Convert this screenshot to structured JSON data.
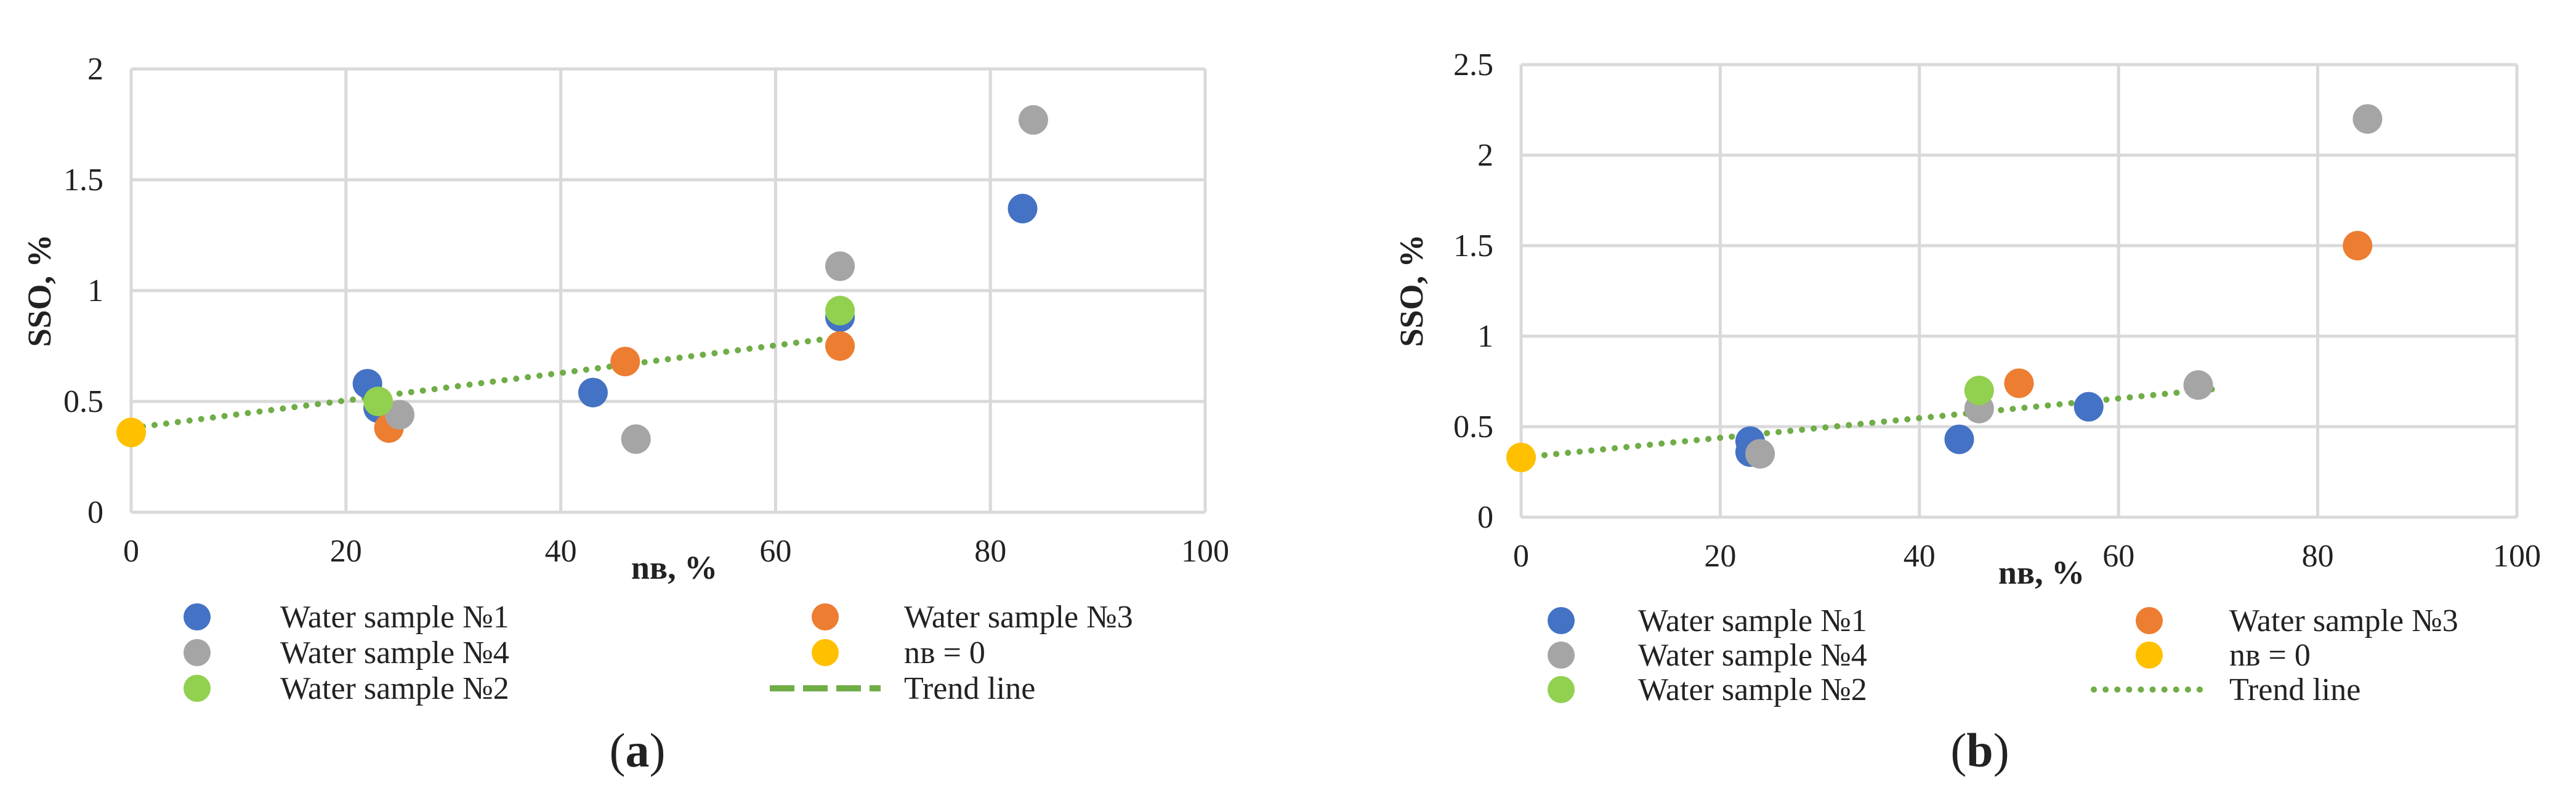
{
  "chart_data": [
    {
      "type": "scatter",
      "panel_label": "a",
      "xlabel": "nв, %",
      "ylabel": "SSO, %",
      "xlim": [
        0,
        100
      ],
      "ylim": [
        0,
        2
      ],
      "xticks": [
        0,
        20,
        40,
        60,
        80,
        100
      ],
      "xtick_labels": [
        "0",
        "20",
        "40",
        "60",
        "80",
        "100"
      ],
      "yticks": [
        0,
        0.5,
        1,
        1.5,
        2
      ],
      "ytick_labels": [
        "0",
        "0.5",
        "1",
        "1.5",
        "2"
      ],
      "grid": true,
      "series": [
        {
          "name": "Water sample №1",
          "color": "#4472C4",
          "points": [
            [
              22,
              0.58
            ],
            [
              23,
              0.47
            ],
            [
              43,
              0.54
            ],
            [
              66,
              0.88
            ],
            [
              83,
              1.37
            ]
          ]
        },
        {
          "name": "Water sample №3",
          "color": "#ED7D31",
          "points": [
            [
              24,
              0.38
            ],
            [
              46,
              0.68
            ],
            [
              66,
              0.75
            ]
          ]
        },
        {
          "name": "Water sample №4",
          "color": "#A5A5A5",
          "points": [
            [
              25,
              0.44
            ],
            [
              47,
              0.33
            ],
            [
              66,
              1.11
            ],
            [
              84,
              1.77
            ]
          ]
        },
        {
          "name": "nв = 0",
          "color": "#FFC000",
          "points": [
            [
              0,
              0.36
            ]
          ]
        },
        {
          "name": "Water sample №2",
          "color": "#92D050",
          "points": [
            [
              23,
              0.5
            ],
            [
              66,
              0.91
            ]
          ]
        }
      ],
      "trend_line": {
        "name": "Trend line",
        "color": "#70AD47",
        "style": "dotted",
        "legend_style": "dashed",
        "from": [
          0,
          0.38
        ],
        "to": [
          66,
          0.79
        ]
      },
      "legend": [
        "Water sample №1",
        "Water sample №3",
        "Water sample №4",
        "nв = 0",
        "Water sample №2",
        "Trend line"
      ],
      "legend_placement": "bottom"
    },
    {
      "type": "scatter",
      "panel_label": "b",
      "xlabel": "nв, %",
      "ylabel": "SSO, %",
      "xlim": [
        0,
        100
      ],
      "ylim": [
        0,
        2.5
      ],
      "xticks": [
        0,
        20,
        40,
        60,
        80,
        100
      ],
      "xtick_labels": [
        "0",
        "20",
        "40",
        "60",
        "80",
        "100"
      ],
      "yticks": [
        0,
        0.5,
        1,
        1.5,
        2,
        2.5
      ],
      "ytick_labels": [
        "0",
        "0.5",
        "1",
        "1.5",
        "2",
        "2.5"
      ],
      "grid": true,
      "series": [
        {
          "name": "Water sample №1",
          "color": "#4472C4",
          "points": [
            [
              23,
              0.42
            ],
            [
              23,
              0.36
            ],
            [
              44,
              0.43
            ],
            [
              57,
              0.61
            ]
          ]
        },
        {
          "name": "Water sample №3",
          "color": "#ED7D31",
          "points": [
            [
              50,
              0.74
            ],
            [
              84,
              1.5
            ]
          ]
        },
        {
          "name": "Water sample №4",
          "color": "#A5A5A5",
          "points": [
            [
              24,
              0.35
            ],
            [
              46,
              0.6
            ],
            [
              68,
              0.73
            ],
            [
              85,
              2.2
            ]
          ]
        },
        {
          "name": "nв = 0",
          "color": "#FFC000",
          "points": [
            [
              0,
              0.33
            ]
          ]
        },
        {
          "name": "Water sample №2",
          "color": "#92D050",
          "points": [
            [
              46,
              0.7
            ]
          ]
        }
      ],
      "trend_line": {
        "name": "Trend line",
        "color": "#70AD47",
        "style": "dotted",
        "legend_style": "dotted",
        "from": [
          0,
          0.33
        ],
        "to": [
          70,
          0.71
        ]
      },
      "legend": [
        "Water sample №1",
        "Water sample №3",
        "Water sample №4",
        "nв = 0",
        "Water sample №2",
        "Trend line"
      ],
      "legend_placement": "bottom"
    }
  ]
}
